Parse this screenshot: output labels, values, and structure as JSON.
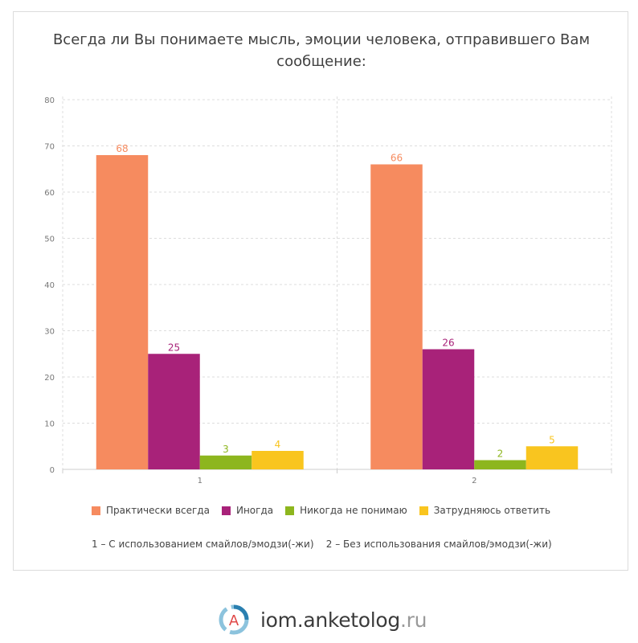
{
  "title": "Всегда ли Вы понимаете мысль, эмоции человека, отправившего Вам сообщение:",
  "chart_data": {
    "type": "bar",
    "categories": [
      "1",
      "2"
    ],
    "series": [
      {
        "name": "Практически всегда",
        "values": [
          68,
          66
        ],
        "color": "#F68B5F"
      },
      {
        "name": "Иногда",
        "values": [
          25,
          26
        ],
        "color": "#A82279"
      },
      {
        "name": "Никогда не понимаю",
        "values": [
          3,
          2
        ],
        "color": "#8DB61E"
      },
      {
        "name": "Затрудняюсь ответить",
        "values": [
          4,
          5
        ],
        "color": "#F9C51F"
      }
    ],
    "ylim": [
      0,
      80
    ],
    "yticks": [
      0,
      10,
      20,
      30,
      40,
      50,
      60,
      70,
      80
    ],
    "grid": true,
    "legend_position": "bottom",
    "data_labels": true
  },
  "footnote": "1 – С использованием смайлов/эмодзи(-жи)    2 – Без использования смайлов/эмодзи(-жи)",
  "brand": {
    "name": "iom.anketolog",
    "tld": ".ru",
    "logo_letter": "A"
  }
}
